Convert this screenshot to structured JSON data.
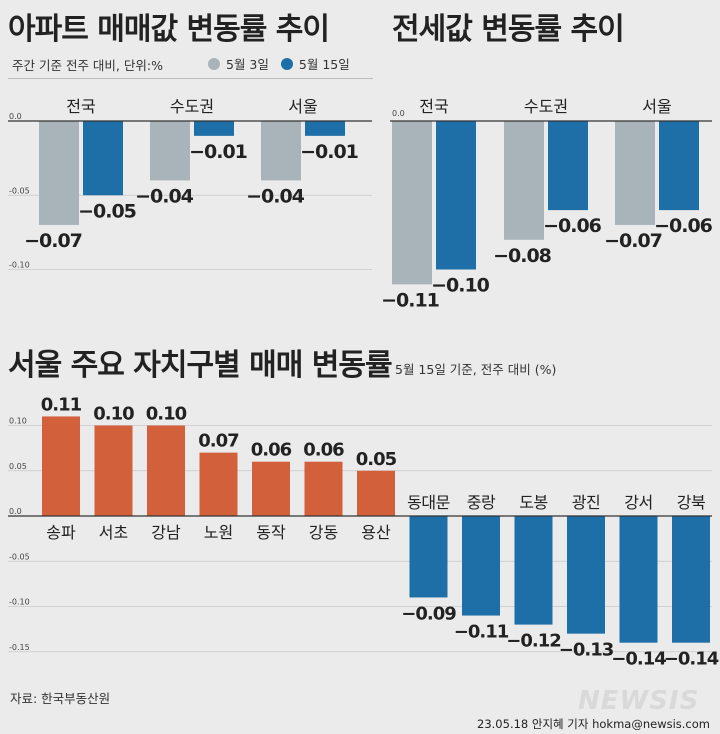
{
  "colors": {
    "gray": "#a9b3ba",
    "blue": "#1e6fa8",
    "orange": "#d2603a",
    "axis": "#333333"
  },
  "header": {
    "title_left": "아파트 매매값 변동률 추이",
    "title_right": "전세값 변동률 추이",
    "subtitle": "주간 기준 전주 대비, 단위:%",
    "legend": [
      {
        "label": "5월 3일",
        "color": "#a9b3ba"
      },
      {
        "label": "5월 15일",
        "color": "#1e6fa8"
      }
    ]
  },
  "section2": {
    "title": "서울 주요 자치구별 매매 변동률",
    "subtitle": "5월 15일 기준, 전주 대비 (%)"
  },
  "chart_data": [
    {
      "type": "bar",
      "title": "아파트 매매값 변동률 추이",
      "categories": [
        "전국",
        "수도권",
        "서울"
      ],
      "series": [
        {
          "name": "5월 3일",
          "values": [
            -0.07,
            -0.04,
            -0.04
          ],
          "labels": [
            "−0.07",
            "−0.04",
            "−0.04"
          ]
        },
        {
          "name": "5월 15일",
          "values": [
            -0.05,
            -0.01,
            -0.01
          ],
          "labels": [
            "−0.05",
            "−0.01",
            "−0.01"
          ]
        }
      ],
      "yticks": [
        "0.0",
        "-0.05",
        "-0.10"
      ],
      "ylim": [
        -0.11,
        0
      ]
    },
    {
      "type": "bar",
      "title": "전세값 변동률 추이",
      "categories": [
        "전국",
        "수도권",
        "서울"
      ],
      "series": [
        {
          "name": "5월 3일",
          "values": [
            -0.11,
            -0.08,
            -0.07
          ],
          "labels": [
            "−0.11",
            "−0.08",
            "−0.07"
          ]
        },
        {
          "name": "5월 15일",
          "values": [
            -0.1,
            -0.06,
            -0.06
          ],
          "labels": [
            "−0.10",
            "−0.06",
            "−0.06"
          ]
        }
      ],
      "yticks": [
        "0.0"
      ],
      "ylim": [
        -0.12,
        0
      ]
    },
    {
      "type": "bar",
      "title": "서울 주요 자치구별 매매 변동률",
      "categories": [
        "송파",
        "서초",
        "강남",
        "노원",
        "동작",
        "강동",
        "용산",
        "동대문",
        "중랑",
        "도봉",
        "광진",
        "강서",
        "강북"
      ],
      "values": [
        0.11,
        0.1,
        0.1,
        0.07,
        0.06,
        0.06,
        0.05,
        -0.09,
        -0.11,
        -0.12,
        -0.13,
        -0.14,
        -0.14
      ],
      "labels": [
        "0.11",
        "0.10",
        "0.10",
        "0.07",
        "0.06",
        "0.06",
        "0.05",
        "−0.09",
        "−0.11",
        "−0.12",
        "−0.13",
        "−0.14",
        "−0.14"
      ],
      "yticks": [
        "0.10",
        "0.05",
        "0.0",
        "-0.05",
        "-0.10",
        "-0.15"
      ],
      "ylim": [
        -0.16,
        0.12
      ]
    }
  ],
  "footer": {
    "source": "자료: 한국부동산원",
    "logo": "NEWSIS",
    "credit": "23.05.18 안지혜 기자 hokma@newsis.com"
  }
}
